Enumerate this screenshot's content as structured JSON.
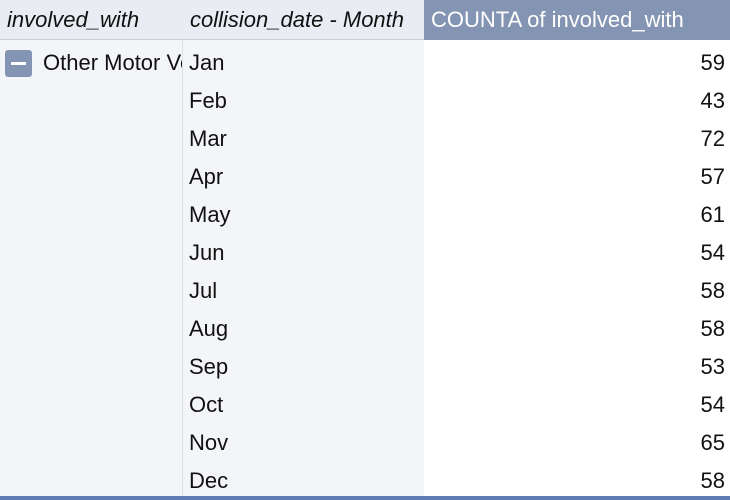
{
  "headers": {
    "row_field": "involved_with",
    "column_field": "collision_date - Month",
    "value_field": "COUNTA of involved_with"
  },
  "group": {
    "label": "Other Motor Vehicle",
    "collapse_icon": "minus-icon"
  },
  "rows": [
    {
      "month": "Jan",
      "count": "59"
    },
    {
      "month": "Feb",
      "count": "43"
    },
    {
      "month": "Mar",
      "count": "72"
    },
    {
      "month": "Apr",
      "count": "57"
    },
    {
      "month": "May",
      "count": "61"
    },
    {
      "month": "Jun",
      "count": "54"
    },
    {
      "month": "Jul",
      "count": "58"
    },
    {
      "month": "Aug",
      "count": "58"
    },
    {
      "month": "Sep",
      "count": "53"
    },
    {
      "month": "Oct",
      "count": "54"
    },
    {
      "month": "Nov",
      "count": "65"
    },
    {
      "month": "Dec",
      "count": "58"
    }
  ],
  "colors": {
    "header_accent": "#8494b3",
    "header_field_bg": "#e9ecf2",
    "row_label_bg": "#f3f5f8",
    "bottom_rule": "#5e7db6"
  }
}
